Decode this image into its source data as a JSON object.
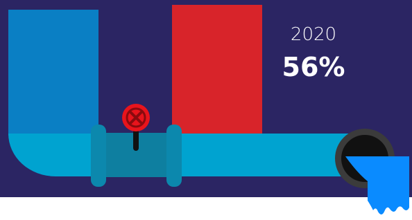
{
  "infographic": {
    "year": "2020",
    "value": "56%"
  }
}
